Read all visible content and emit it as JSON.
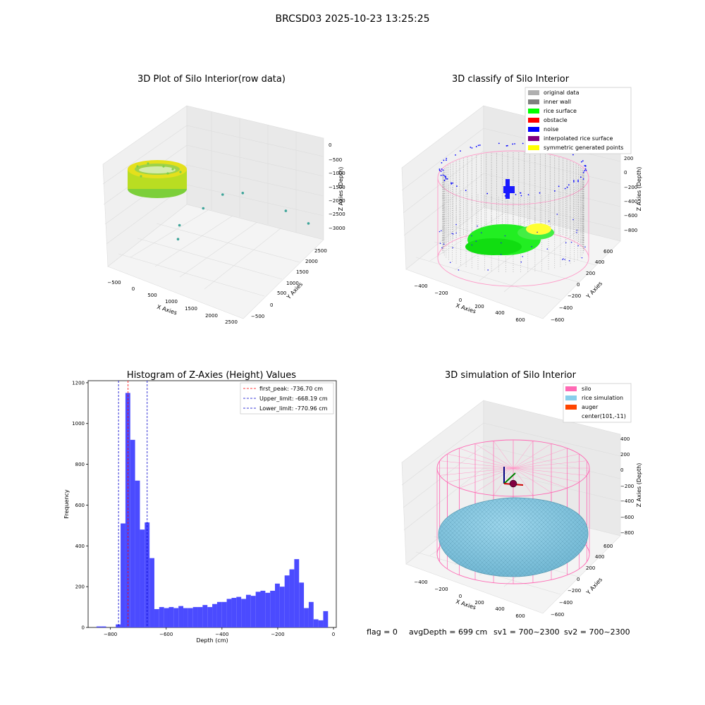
{
  "figure": {
    "suptitle": "BRCSD03 2025-10-23 13:25:25",
    "footer": {
      "flag": "flag = 0",
      "avg_depth": "avgDepth = 699 cm",
      "sv1": "sv1 = 700~2300",
      "sv2": "sv2 = 700~2300"
    }
  },
  "colors": {
    "original": "#b0b0b0",
    "inner_wall": "#808080",
    "rice_surface": "#00ff00",
    "obstacle": "#ff0000",
    "noise": "#0000ff",
    "interpolated": "#800080",
    "symmetric": "#ffff00",
    "silo": "#ff69b4",
    "rice_sim": "#87ceeb",
    "auger": "#ff4500",
    "hist_bar": "#4b4bff",
    "peak": "#ff0000",
    "limit": "#0000cc"
  },
  "chart_data": [
    {
      "type": "scatter3d",
      "title": "3D Plot of Silo Interior(row data)",
      "xlabel": "X Axies",
      "ylabel": "Y Axies",
      "zlabel": "Z Axies (Depth)",
      "xticks": [
        "−500",
        "0",
        "500",
        "1000",
        "1500",
        "2000",
        "2500"
      ],
      "yticks": [
        "−500",
        "0",
        "500",
        "1000",
        "1500",
        "2000",
        "2500"
      ],
      "zticks": [
        "0",
        "−500",
        "−1000",
        "−1500",
        "−2000",
        "−2500",
        "−3000"
      ],
      "series": [
        {
          "values": [
            {
              "x": 60,
              "y": 50,
              "z": -800
            },
            {
              "x": 100,
              "y": 120,
              "z": -760
            },
            {
              "x": 40,
              "y": 200,
              "z": -820
            }
          ]
        }
      ],
      "outliers": [
        {
          "x": 1100,
          "y": 1300,
          "z": -1400
        },
        {
          "x": 1350,
          "y": 1550,
          "z": -1300
        },
        {
          "x": 2000,
          "y": 1950,
          "z": -1600
        },
        {
          "x": 2350,
          "y": 2150,
          "z": -1850
        },
        {
          "x": 950,
          "y": 950,
          "z": -1750
        },
        {
          "x": 700,
          "y": 600,
          "z": -2300
        },
        {
          "x": 750,
          "y": 500,
          "z": -2650
        }
      ]
    },
    {
      "type": "scatter3d",
      "title": "3D classify of Silo Interior",
      "xlabel": "X Axies",
      "ylabel": "Y Axies",
      "zlabel": "Z Axies (Depth)",
      "xticks": [
        "−400",
        "−200",
        "0",
        "200",
        "400",
        "600"
      ],
      "yticks": [
        "−600",
        "−400",
        "−200",
        "0",
        "200",
        "400",
        "600"
      ],
      "zticks": [
        "200",
        "0",
        "−200",
        "−400",
        "−600",
        "−800"
      ],
      "legend": [
        "original data",
        "inner wall",
        "rice surface",
        "obstacle",
        "noise",
        "interpolated rice surface",
        "symmetric generated points"
      ],
      "legend_loc": "upper-right"
    },
    {
      "type": "bar",
      "title": "Histogram of Z-Axies (Height) Values",
      "xlabel": "Depth (cm)",
      "ylabel": "Frequency",
      "xlim": [
        -880,
        10
      ],
      "ylim": [
        0,
        1210
      ],
      "xticks": [
        -800,
        -600,
        -400,
        -200,
        0
      ],
      "yticks": [
        0,
        200,
        400,
        600,
        800,
        1000,
        1200
      ],
      "bin_width": 17.3,
      "bins": [
        {
          "x0": -850,
          "v": 5
        },
        {
          "x0": -832.7,
          "v": 5
        },
        {
          "x0": -815.4,
          "v": 0
        },
        {
          "x0": -798.1,
          "v": 0
        },
        {
          "x0": -780.8,
          "v": 15
        },
        {
          "x0": -763.5,
          "v": 510
        },
        {
          "x0": -746.2,
          "v": 1150
        },
        {
          "x0": -728.9,
          "v": 920
        },
        {
          "x0": -711.6,
          "v": 720
        },
        {
          "x0": -694.3,
          "v": 480
        },
        {
          "x0": -677.0,
          "v": 515
        },
        {
          "x0": -659.7,
          "v": 340
        },
        {
          "x0": -642.4,
          "v": 90
        },
        {
          "x0": -625.1,
          "v": 100
        },
        {
          "x0": -607.8,
          "v": 95
        },
        {
          "x0": -590.5,
          "v": 100
        },
        {
          "x0": -573.2,
          "v": 95
        },
        {
          "x0": -555.9,
          "v": 105
        },
        {
          "x0": -538.6,
          "v": 95
        },
        {
          "x0": -521.3,
          "v": 95
        },
        {
          "x0": -504.0,
          "v": 100
        },
        {
          "x0": -486.7,
          "v": 100
        },
        {
          "x0": -469.4,
          "v": 110
        },
        {
          "x0": -452.1,
          "v": 100
        },
        {
          "x0": -434.8,
          "v": 115
        },
        {
          "x0": -417.5,
          "v": 125
        },
        {
          "x0": -400.2,
          "v": 125
        },
        {
          "x0": -382.9,
          "v": 140
        },
        {
          "x0": -365.6,
          "v": 145
        },
        {
          "x0": -348.3,
          "v": 150
        },
        {
          "x0": -331.0,
          "v": 140
        },
        {
          "x0": -313.7,
          "v": 160
        },
        {
          "x0": -296.4,
          "v": 155
        },
        {
          "x0": -279.1,
          "v": 175
        },
        {
          "x0": -261.8,
          "v": 180
        },
        {
          "x0": -244.5,
          "v": 170
        },
        {
          "x0": -227.2,
          "v": 180
        },
        {
          "x0": -209.9,
          "v": 215
        },
        {
          "x0": -192.6,
          "v": 200
        },
        {
          "x0": -175.3,
          "v": 255
        },
        {
          "x0": -158.0,
          "v": 285
        },
        {
          "x0": -140.7,
          "v": 335
        },
        {
          "x0": -123.4,
          "v": 220
        },
        {
          "x0": -106.1,
          "v": 95
        },
        {
          "x0": -88.8,
          "v": 125
        },
        {
          "x0": -71.5,
          "v": 40
        },
        {
          "x0": -54.2,
          "v": 35
        },
        {
          "x0": -36.9,
          "v": 80
        }
      ],
      "vlines": [
        {
          "name": "first_peak: -736.70 cm",
          "x": -736.7,
          "style": "peak"
        },
        {
          "name": "Upper_limit: -668.19 cm",
          "x": -668.19,
          "style": "limit"
        },
        {
          "name": "Lower_limit: -770.96 cm",
          "x": -770.96,
          "style": "limit"
        }
      ],
      "legend_loc": "upper-right"
    },
    {
      "type": "surface3d",
      "title": "3D simulation of Silo Interior",
      "xlabel": "X Axies",
      "ylabel": "Y Axies",
      "zlabel": "Z Axies (Depth)",
      "xticks": [
        "−400",
        "−200",
        "0",
        "200",
        "400",
        "600"
      ],
      "yticks": [
        "−600",
        "−400",
        "−200",
        "0",
        "200",
        "400",
        "600"
      ],
      "zticks": [
        "400",
        "200",
        "0",
        "−200",
        "−400",
        "−600",
        "−800"
      ],
      "legend": [
        "silo",
        "rice simulation",
        "auger",
        "center(101,-11)"
      ],
      "legend_loc": "upper-right"
    }
  ]
}
